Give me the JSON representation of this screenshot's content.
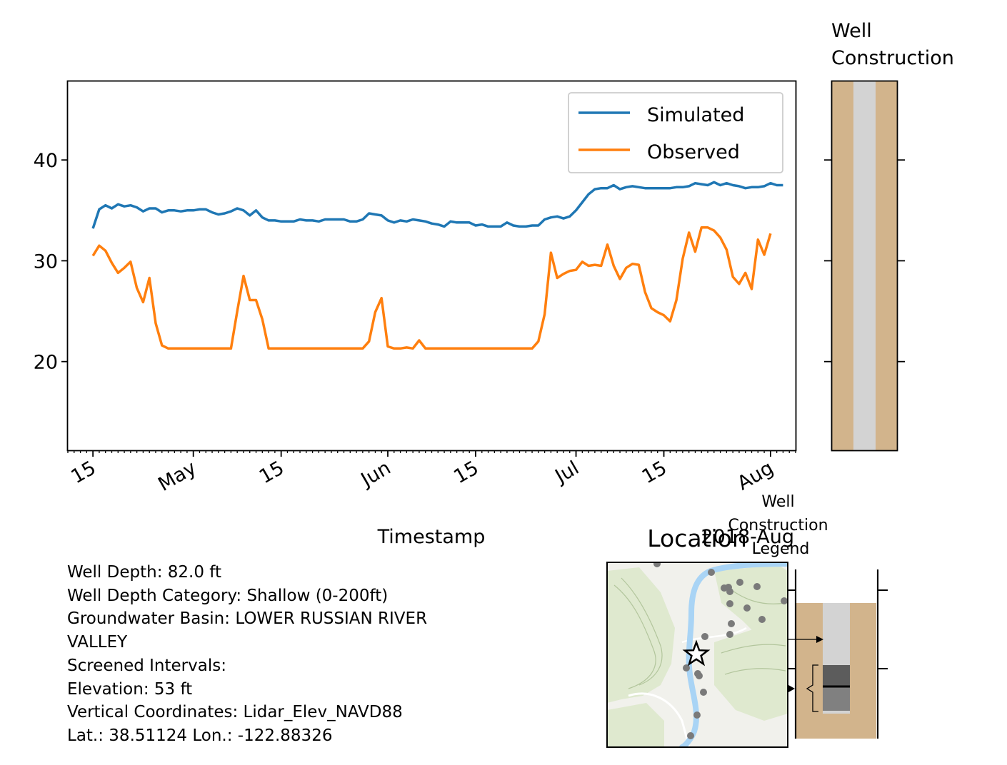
{
  "chart_data": [
    {
      "type": "line",
      "xlabel": "Timestamp",
      "ylabel": "",
      "x_range": [
        "2018-04-11",
        "2018-08-05"
      ],
      "ylim": [
        11.2,
        47.8
      ],
      "y_ticks": [
        20,
        30,
        40
      ],
      "x_ticks": [
        {
          "date": "2018-04-15",
          "label": "15"
        },
        {
          "date": "2018-05-01",
          "label": "May"
        },
        {
          "date": "2018-05-15",
          "label": "15"
        },
        {
          "date": "2018-06-01",
          "label": "Jun"
        },
        {
          "date": "2018-06-15",
          "label": "15"
        },
        {
          "date": "2018-07-01",
          "label": "Jul"
        },
        {
          "date": "2018-07-15",
          "label": "15"
        },
        {
          "date": "2018-08-01",
          "label": "Aug"
        }
      ],
      "x_offset_label": "2018-Aug",
      "legend": {
        "placement": "top-right",
        "entries": [
          "Simulated",
          "Observed"
        ]
      },
      "grid": false,
      "series": [
        {
          "name": "Simulated",
          "color": "#1f77b4",
          "points": [
            [
              "2018-04-15",
              33.2
            ],
            [
              "2018-04-16",
              35.1
            ],
            [
              "2018-04-17",
              35.5
            ],
            [
              "2018-04-18",
              35.2
            ],
            [
              "2018-04-19",
              35.6
            ],
            [
              "2018-04-20",
              35.4
            ],
            [
              "2018-04-21",
              35.5
            ],
            [
              "2018-04-22",
              35.3
            ],
            [
              "2018-04-23",
              34.9
            ],
            [
              "2018-04-24",
              35.2
            ],
            [
              "2018-04-25",
              35.2
            ],
            [
              "2018-04-26",
              34.8
            ],
            [
              "2018-04-27",
              35.0
            ],
            [
              "2018-04-28",
              35.0
            ],
            [
              "2018-04-29",
              34.9
            ],
            [
              "2018-04-30",
              35.0
            ],
            [
              "2018-05-01",
              35.0
            ],
            [
              "2018-05-02",
              35.1
            ],
            [
              "2018-05-03",
              35.1
            ],
            [
              "2018-05-04",
              34.8
            ],
            [
              "2018-05-05",
              34.6
            ],
            [
              "2018-05-06",
              34.7
            ],
            [
              "2018-05-07",
              34.9
            ],
            [
              "2018-05-08",
              35.2
            ],
            [
              "2018-05-09",
              35.0
            ],
            [
              "2018-05-10",
              34.5
            ],
            [
              "2018-05-11",
              35.0
            ],
            [
              "2018-05-12",
              34.3
            ],
            [
              "2018-05-13",
              34.0
            ],
            [
              "2018-05-14",
              34.0
            ],
            [
              "2018-05-15",
              33.9
            ],
            [
              "2018-05-16",
              33.9
            ],
            [
              "2018-05-17",
              33.9
            ],
            [
              "2018-05-18",
              34.1
            ],
            [
              "2018-05-19",
              34.0
            ],
            [
              "2018-05-20",
              34.0
            ],
            [
              "2018-05-21",
              33.9
            ],
            [
              "2018-05-22",
              34.1
            ],
            [
              "2018-05-23",
              34.1
            ],
            [
              "2018-05-24",
              34.1
            ],
            [
              "2018-05-25",
              34.1
            ],
            [
              "2018-05-26",
              33.9
            ],
            [
              "2018-05-27",
              33.9
            ],
            [
              "2018-05-28",
              34.1
            ],
            [
              "2018-05-29",
              34.7
            ],
            [
              "2018-05-30",
              34.6
            ],
            [
              "2018-05-31",
              34.5
            ],
            [
              "2018-06-01",
              34.0
            ],
            [
              "2018-06-02",
              33.8
            ],
            [
              "2018-06-03",
              34.0
            ],
            [
              "2018-06-04",
              33.9
            ],
            [
              "2018-06-05",
              34.1
            ],
            [
              "2018-06-06",
              34.0
            ],
            [
              "2018-06-07",
              33.9
            ],
            [
              "2018-06-08",
              33.7
            ],
            [
              "2018-06-09",
              33.6
            ],
            [
              "2018-06-10",
              33.4
            ],
            [
              "2018-06-11",
              33.9
            ],
            [
              "2018-06-12",
              33.8
            ],
            [
              "2018-06-13",
              33.8
            ],
            [
              "2018-06-14",
              33.8
            ],
            [
              "2018-06-15",
              33.5
            ],
            [
              "2018-06-16",
              33.6
            ],
            [
              "2018-06-17",
              33.4
            ],
            [
              "2018-06-18",
              33.4
            ],
            [
              "2018-06-19",
              33.4
            ],
            [
              "2018-06-20",
              33.8
            ],
            [
              "2018-06-21",
              33.5
            ],
            [
              "2018-06-22",
              33.4
            ],
            [
              "2018-06-23",
              33.4
            ],
            [
              "2018-06-24",
              33.5
            ],
            [
              "2018-06-25",
              33.5
            ],
            [
              "2018-06-26",
              34.1
            ],
            [
              "2018-06-27",
              34.3
            ],
            [
              "2018-06-28",
              34.4
            ],
            [
              "2018-06-29",
              34.2
            ],
            [
              "2018-06-30",
              34.4
            ],
            [
              "2018-07-01",
              35.0
            ],
            [
              "2018-07-02",
              35.8
            ],
            [
              "2018-07-03",
              36.6
            ],
            [
              "2018-07-04",
              37.1
            ],
            [
              "2018-07-05",
              37.2
            ],
            [
              "2018-07-06",
              37.2
            ],
            [
              "2018-07-07",
              37.5
            ],
            [
              "2018-07-08",
              37.1
            ],
            [
              "2018-07-09",
              37.3
            ],
            [
              "2018-07-10",
              37.4
            ],
            [
              "2018-07-11",
              37.3
            ],
            [
              "2018-07-12",
              37.2
            ],
            [
              "2018-07-13",
              37.2
            ],
            [
              "2018-07-14",
              37.2
            ],
            [
              "2018-07-15",
              37.2
            ],
            [
              "2018-07-16",
              37.2
            ],
            [
              "2018-07-17",
              37.3
            ],
            [
              "2018-07-18",
              37.3
            ],
            [
              "2018-07-19",
              37.4
            ],
            [
              "2018-07-20",
              37.7
            ],
            [
              "2018-07-21",
              37.6
            ],
            [
              "2018-07-22",
              37.5
            ],
            [
              "2018-07-23",
              37.8
            ],
            [
              "2018-07-24",
              37.5
            ],
            [
              "2018-07-25",
              37.7
            ],
            [
              "2018-07-26",
              37.5
            ],
            [
              "2018-07-27",
              37.4
            ],
            [
              "2018-07-28",
              37.2
            ],
            [
              "2018-07-29",
              37.3
            ],
            [
              "2018-07-30",
              37.3
            ],
            [
              "2018-07-31",
              37.4
            ],
            [
              "2018-08-01",
              37.7
            ],
            [
              "2018-08-02",
              37.5
            ],
            [
              "2018-08-03",
              37.5
            ]
          ]
        },
        {
          "name": "Observed",
          "color": "#ff7f0e",
          "points": [
            [
              "2018-04-15",
              30.5
            ],
            [
              "2018-04-16",
              31.5
            ],
            [
              "2018-04-17",
              31.0
            ],
            [
              "2018-04-18",
              29.8
            ],
            [
              "2018-04-19",
              28.8
            ],
            [
              "2018-04-20",
              29.3
            ],
            [
              "2018-04-21",
              29.9
            ],
            [
              "2018-04-22",
              27.3
            ],
            [
              "2018-04-23",
              25.9
            ],
            [
              "2018-04-24",
              28.3
            ],
            [
              "2018-04-25",
              23.8
            ],
            [
              "2018-04-26",
              21.6
            ],
            [
              "2018-04-27",
              21.3
            ],
            [
              "2018-04-28",
              21.3
            ],
            [
              "2018-04-29",
              21.3
            ],
            [
              "2018-04-30",
              21.3
            ],
            [
              "2018-05-01",
              21.3
            ],
            [
              "2018-05-02",
              21.3
            ],
            [
              "2018-05-03",
              21.3
            ],
            [
              "2018-05-04",
              21.3
            ],
            [
              "2018-05-05",
              21.3
            ],
            [
              "2018-05-06",
              21.3
            ],
            [
              "2018-05-07",
              21.3
            ],
            [
              "2018-05-08",
              25.0
            ],
            [
              "2018-05-09",
              28.5
            ],
            [
              "2018-05-10",
              26.1
            ],
            [
              "2018-05-11",
              26.1
            ],
            [
              "2018-05-12",
              24.2
            ],
            [
              "2018-05-13",
              21.3
            ],
            [
              "2018-05-14",
              21.3
            ],
            [
              "2018-05-15",
              21.3
            ],
            [
              "2018-05-16",
              21.3
            ],
            [
              "2018-05-17",
              21.3
            ],
            [
              "2018-05-18",
              21.3
            ],
            [
              "2018-05-19",
              21.3
            ],
            [
              "2018-05-20",
              21.3
            ],
            [
              "2018-05-21",
              21.3
            ],
            [
              "2018-05-22",
              21.3
            ],
            [
              "2018-05-23",
              21.3
            ],
            [
              "2018-05-24",
              21.3
            ],
            [
              "2018-05-25",
              21.3
            ],
            [
              "2018-05-26",
              21.3
            ],
            [
              "2018-05-27",
              21.3
            ],
            [
              "2018-05-28",
              21.3
            ],
            [
              "2018-05-29",
              22.0
            ],
            [
              "2018-05-30",
              24.9
            ],
            [
              "2018-05-31",
              26.3
            ],
            [
              "2018-06-01",
              21.5
            ],
            [
              "2018-06-02",
              21.3
            ],
            [
              "2018-06-03",
              21.3
            ],
            [
              "2018-06-04",
              21.4
            ],
            [
              "2018-06-05",
              21.3
            ],
            [
              "2018-06-06",
              22.1
            ],
            [
              "2018-06-07",
              21.3
            ],
            [
              "2018-06-08",
              21.3
            ],
            [
              "2018-06-09",
              21.3
            ],
            [
              "2018-06-10",
              21.3
            ],
            [
              "2018-06-11",
              21.3
            ],
            [
              "2018-06-12",
              21.3
            ],
            [
              "2018-06-13",
              21.3
            ],
            [
              "2018-06-14",
              21.3
            ],
            [
              "2018-06-15",
              21.3
            ],
            [
              "2018-06-16",
              21.3
            ],
            [
              "2018-06-17",
              21.3
            ],
            [
              "2018-06-18",
              21.3
            ],
            [
              "2018-06-19",
              21.3
            ],
            [
              "2018-06-20",
              21.3
            ],
            [
              "2018-06-21",
              21.3
            ],
            [
              "2018-06-22",
              21.3
            ],
            [
              "2018-06-23",
              21.3
            ],
            [
              "2018-06-24",
              21.3
            ],
            [
              "2018-06-25",
              22.0
            ],
            [
              "2018-06-26",
              24.7
            ],
            [
              "2018-06-27",
              30.8
            ],
            [
              "2018-06-28",
              28.3
            ],
            [
              "2018-06-29",
              28.7
            ],
            [
              "2018-06-30",
              29.0
            ],
            [
              "2018-07-01",
              29.1
            ],
            [
              "2018-07-02",
              29.9
            ],
            [
              "2018-07-03",
              29.5
            ],
            [
              "2018-07-04",
              29.6
            ],
            [
              "2018-07-05",
              29.5
            ],
            [
              "2018-07-06",
              31.6
            ],
            [
              "2018-07-07",
              29.5
            ],
            [
              "2018-07-08",
              28.2
            ],
            [
              "2018-07-09",
              29.3
            ],
            [
              "2018-07-10",
              29.7
            ],
            [
              "2018-07-11",
              29.6
            ],
            [
              "2018-07-12",
              26.9
            ],
            [
              "2018-07-13",
              25.3
            ],
            [
              "2018-07-14",
              24.9
            ],
            [
              "2018-07-15",
              24.6
            ],
            [
              "2018-07-16",
              24.0
            ],
            [
              "2018-07-17",
              26.1
            ],
            [
              "2018-07-18",
              30.2
            ],
            [
              "2018-07-19",
              32.8
            ],
            [
              "2018-07-20",
              30.9
            ],
            [
              "2018-07-21",
              33.3
            ],
            [
              "2018-07-22",
              33.3
            ],
            [
              "2018-07-23",
              33.0
            ],
            [
              "2018-07-24",
              32.3
            ],
            [
              "2018-07-25",
              31.1
            ],
            [
              "2018-07-26",
              28.4
            ],
            [
              "2018-07-27",
              27.7
            ],
            [
              "2018-07-28",
              28.8
            ],
            [
              "2018-07-29",
              27.2
            ],
            [
              "2018-07-30",
              32.1
            ],
            [
              "2018-07-31",
              30.6
            ],
            [
              "2018-08-01",
              32.7
            ]
          ]
        }
      ]
    },
    {
      "type": "well-construction",
      "title": "Well\nConstruction",
      "y_ticks": [
        20,
        30,
        40
      ],
      "ylim": [
        11.2,
        47.8
      ],
      "colors": {
        "formation": "#d2b48c",
        "casing": "#d3d3d3"
      }
    }
  ],
  "info": {
    "lines": [
      "Well Depth: 82.0 ft",
      "Well Depth Category: Shallow (0-200ft)",
      "Groundwater Basin: LOWER RUSSIAN RIVER",
      "VALLEY",
      "Screened Intervals:",
      "Elevation: 53 ft",
      "Vertical Coordinates: Lidar_Elev_NAVD88",
      "Lat.: 38.51124 Lon.: -122.88326"
    ]
  },
  "location_map": {
    "title": "Location",
    "marker_icon": "star-icon",
    "colors": {
      "terrain": "#dfe9cf",
      "river": "#a9d4f5",
      "neighbor_wells": "#7a7a7a",
      "road": "#ffffff"
    }
  },
  "construction_legend": {
    "title": "Well\nConstruction\nLegend",
    "colors": {
      "formation": "#d2b48c",
      "casing": "#d3d3d3",
      "screen": "#808080",
      "screen_top": "#5c5c5c"
    }
  }
}
